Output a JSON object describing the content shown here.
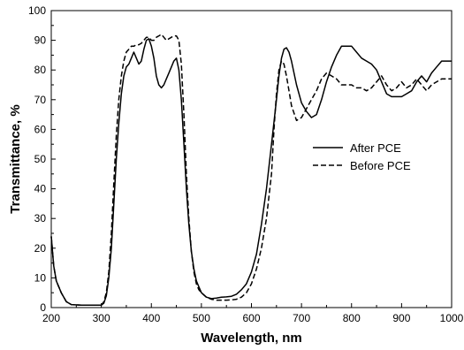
{
  "chart_data": {
    "type": "line",
    "xlabel": "Wavelength, nm",
    "ylabel": "Transmittance, %",
    "xlim": [
      200,
      1000
    ],
    "ylim": [
      0,
      100
    ],
    "x_ticks": [
      200,
      300,
      400,
      500,
      600,
      700,
      800,
      900,
      1000
    ],
    "y_ticks": [
      0,
      10,
      20,
      30,
      40,
      50,
      60,
      70,
      80,
      90,
      100
    ],
    "grid": false,
    "legend_position": "right",
    "series": [
      {
        "name": "After PCE",
        "style": "solid",
        "x": [
          200,
          205,
          210,
          220,
          230,
          240,
          260,
          280,
          300,
          305,
          310,
          315,
          320,
          325,
          330,
          335,
          340,
          345,
          350,
          355,
          360,
          365,
          370,
          375,
          380,
          385,
          390,
          395,
          400,
          405,
          410,
          415,
          420,
          425,
          430,
          435,
          440,
          445,
          450,
          455,
          460,
          465,
          470,
          475,
          480,
          485,
          490,
          495,
          500,
          510,
          520,
          530,
          540,
          550,
          560,
          570,
          580,
          590,
          600,
          610,
          620,
          630,
          640,
          650,
          655,
          660,
          665,
          670,
          675,
          680,
          690,
          700,
          710,
          720,
          730,
          740,
          750,
          760,
          770,
          780,
          790,
          800,
          810,
          820,
          830,
          840,
          850,
          860,
          870,
          880,
          890,
          900,
          910,
          920,
          930,
          940,
          950,
          960,
          970,
          980,
          990,
          1000
        ],
        "y": [
          24,
          14,
          9,
          5,
          2,
          1,
          0.8,
          0.8,
          0.8,
          1.5,
          4,
          10,
          20,
          35,
          50,
          62,
          72,
          78,
          81,
          82,
          84,
          86,
          84,
          82,
          83,
          87,
          90,
          90.5,
          88,
          84,
          78,
          75,
          74,
          75,
          77,
          79,
          81,
          83,
          84,
          80,
          70,
          55,
          40,
          28,
          19,
          13,
          9,
          7,
          5,
          3.5,
          3,
          3.2,
          3.5,
          3.6,
          3.8,
          4.5,
          6,
          8,
          12,
          18,
          28,
          40,
          55,
          70,
          78,
          84,
          87,
          87.5,
          86,
          83,
          75,
          69,
          66,
          64,
          65,
          70,
          76,
          81,
          85,
          88,
          88,
          88,
          86,
          84,
          83,
          82,
          80,
          76,
          72,
          71,
          71,
          71,
          72,
          73,
          76,
          78,
          76,
          79,
          81,
          83,
          83,
          83
        ]
      },
      {
        "name": "Before PCE",
        "style": "dashed",
        "x": [
          200,
          205,
          210,
          220,
          230,
          240,
          260,
          280,
          300,
          305,
          310,
          315,
          320,
          325,
          330,
          335,
          340,
          345,
          350,
          355,
          360,
          365,
          370,
          375,
          380,
          385,
          390,
          395,
          400,
          405,
          410,
          415,
          420,
          425,
          430,
          435,
          440,
          445,
          450,
          455,
          460,
          465,
          470,
          475,
          480,
          485,
          490,
          495,
          500,
          510,
          520,
          530,
          540,
          550,
          560,
          570,
          580,
          590,
          600,
          610,
          620,
          630,
          640,
          645,
          650,
          655,
          660,
          665,
          670,
          675,
          680,
          690,
          700,
          710,
          720,
          730,
          740,
          750,
          760,
          770,
          780,
          790,
          800,
          810,
          820,
          830,
          840,
          850,
          860,
          870,
          880,
          890,
          900,
          910,
          920,
          930,
          940,
          950,
          960,
          970,
          980,
          990,
          1000
        ],
        "y": [
          24,
          14,
          9,
          5,
          2,
          1,
          0.8,
          0.8,
          0.8,
          2,
          5,
          12,
          25,
          42,
          58,
          70,
          78,
          83,
          86,
          87,
          88,
          88,
          88.5,
          88.5,
          89,
          90,
          91,
          91,
          90,
          90,
          91,
          91.5,
          92,
          91,
          90,
          90.5,
          91,
          91.5,
          91.5,
          90,
          82,
          65,
          45,
          30,
          19,
          12,
          8,
          6,
          5,
          3.5,
          2.8,
          2.5,
          2.5,
          2.5,
          2.6,
          2.8,
          3.5,
          5,
          8,
          13,
          20,
          30,
          45,
          60,
          72,
          80,
          83,
          82,
          78,
          73,
          68,
          63,
          64,
          67,
          70,
          73,
          77,
          79,
          78,
          77,
          75,
          75,
          75,
          74,
          74,
          73,
          74,
          76,
          78,
          75,
          73,
          74,
          76,
          74,
          75,
          77,
          75,
          73,
          75,
          76,
          77,
          77,
          77
        ]
      }
    ]
  }
}
